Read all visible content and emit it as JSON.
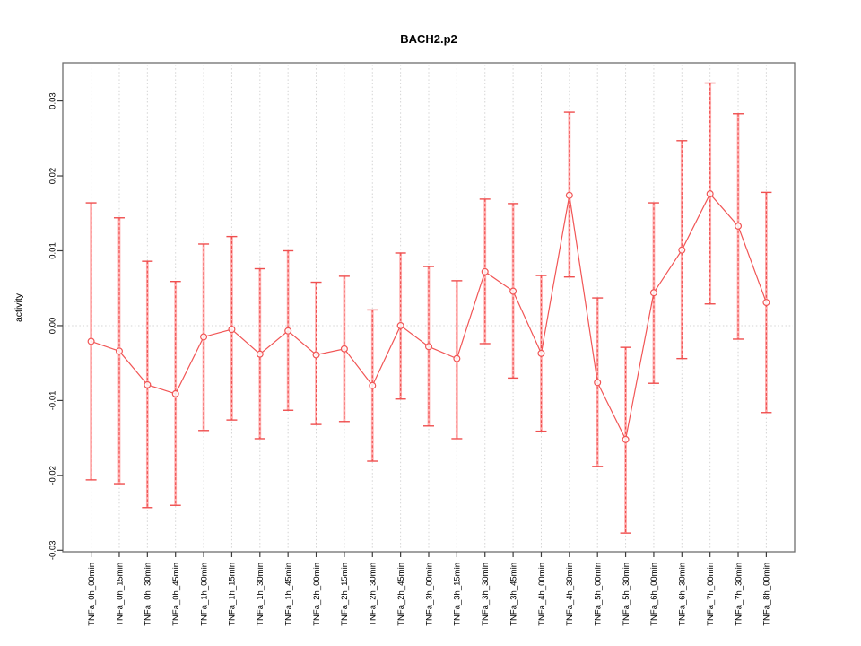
{
  "chart_data": {
    "type": "line",
    "title": "BACH2.p2",
    "xlabel": "",
    "ylabel": "activity",
    "ylim": [
      -0.0302,
      0.0351
    ],
    "yticks": [
      -0.03,
      -0.02,
      -0.01,
      0.0,
      0.01,
      0.02,
      0.03
    ],
    "ytick_labels": [
      "-0.03",
      "-0.02",
      "-0.01",
      "0.00",
      "0.01",
      "0.02",
      "0.03"
    ],
    "grid": "vertical-dotted-at-each-category-plus-dotted-zero-line",
    "legend": "none",
    "marker": "open-circle",
    "categories": [
      "TNFa_0h_00min",
      "TNFa_0h_15min",
      "TNFa_0h_30min",
      "TNFa_0h_45min",
      "TNFa_1h_00min",
      "TNFa_1h_15min",
      "TNFa_1h_30min",
      "TNFa_1h_45min",
      "TNFa_2h_00min",
      "TNFa_2h_15min",
      "TNFa_2h_30min",
      "TNFa_2h_45min",
      "TNFa_3h_00min",
      "TNFa_3h_15min",
      "TNFa_3h_30min",
      "TNFa_3h_45min",
      "TNFa_4h_00min",
      "TNFa_4h_30min",
      "TNFa_5h_00min",
      "TNFa_5h_30min",
      "TNFa_6h_00min",
      "TNFa_6h_30min",
      "TNFa_7h_00min",
      "TNFa_7h_30min",
      "TNFa_8h_00min"
    ],
    "series": [
      {
        "name": "activity",
        "values": [
          -0.0021,
          -0.0034,
          -0.0079,
          -0.0091,
          -0.0015,
          -0.0005,
          -0.0038,
          -0.0007,
          -0.0039,
          -0.0031,
          -0.008,
          0.0,
          -0.0028,
          -0.0044,
          0.0072,
          0.0046,
          -0.0037,
          0.0174,
          -0.0076,
          -0.0152,
          0.0044,
          0.0101,
          0.0176,
          0.0133,
          0.0031
        ],
        "error_high": [
          0.0164,
          0.0144,
          0.0086,
          0.0059,
          0.0109,
          0.0119,
          0.0076,
          0.01,
          0.0058,
          0.0066,
          0.0021,
          0.0097,
          0.0079,
          0.006,
          0.0169,
          0.0163,
          0.0067,
          0.0285,
          0.0037,
          -0.0029,
          0.0164,
          0.0247,
          0.0324,
          0.0283,
          0.0178
        ],
        "error_low": [
          -0.0206,
          -0.0211,
          -0.0243,
          -0.024,
          -0.014,
          -0.0126,
          -0.0151,
          -0.0113,
          -0.0132,
          -0.0128,
          -0.0181,
          -0.0098,
          -0.0134,
          -0.0151,
          -0.0024,
          -0.007,
          -0.0141,
          0.0065,
          -0.0188,
          -0.0277,
          -0.0077,
          -0.0044,
          0.0029,
          -0.0018,
          -0.0116
        ]
      }
    ],
    "colors": {
      "line": "#f15555",
      "marker": "#f15555",
      "errorbar_light": "#ffb0b0",
      "errorbar_dark": "#ef4f4f",
      "grid": "#d4d4d4",
      "box": "#6e6e6e",
      "tick": "#3c3c3c",
      "background": "#ffffff"
    }
  }
}
